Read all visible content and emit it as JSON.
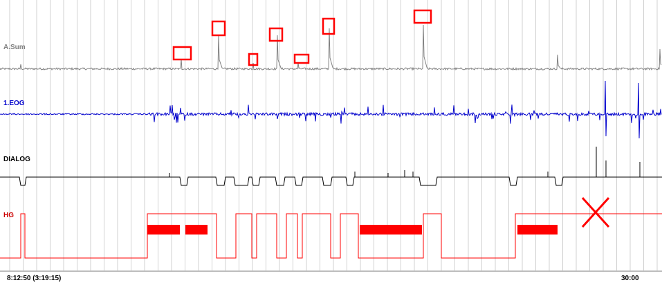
{
  "viewer": {
    "start_time": "8:12:50 (3:19:15)",
    "end_time": "30:00"
  },
  "colors": {
    "grid": "#d2d2d2",
    "marker": "#ff0000",
    "background": "#ffffff"
  },
  "chart_data": {
    "type": "line",
    "grid": true,
    "channels": [
      {
        "name": "A.Sum",
        "color": "#808080"
      },
      {
        "name": "1.EOG",
        "color": "#0000cc"
      },
      {
        "name": "DIALOG",
        "color": "#000000"
      },
      {
        "name": "HG",
        "color": "#ff0000"
      }
    ],
    "annotations": [
      {
        "type": "box",
        "channel": "A.Sum",
        "count": 7
      },
      {
        "type": "cross",
        "channel": "HG"
      }
    ]
  }
}
